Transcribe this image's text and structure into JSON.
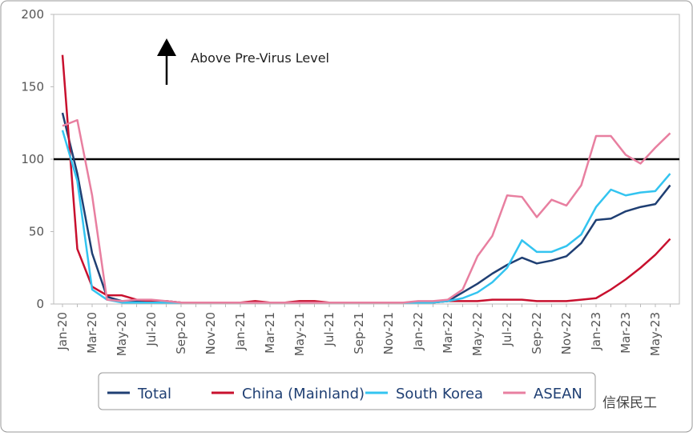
{
  "chart_data": {
    "type": "line",
    "annotation": "Above Pre-Virus Level",
    "reference_line": 100,
    "watermark": "信保民工",
    "categories": [
      "Jan-20",
      null,
      "Mar-20",
      null,
      "May-20",
      null,
      "Jul-20",
      null,
      "Sep-20",
      null,
      "Nov-20",
      null,
      "Jan-21",
      null,
      "Mar-21",
      null,
      "May-21",
      null,
      "Jul-21",
      null,
      "Sep-21",
      null,
      "Nov-21",
      null,
      "Jan-22",
      null,
      "Mar-22",
      null,
      "May-22",
      null,
      "Jul-22",
      null,
      "Sep-22",
      null,
      "Nov-22",
      null,
      "Jan-23",
      null,
      "Mar-23",
      null,
      "May-23",
      null
    ],
    "series": [
      {
        "name": "Total",
        "color": "#1f3f73",
        "values": [
          132,
          90,
          35,
          5,
          2,
          2,
          2,
          2,
          1,
          1,
          1,
          1,
          1,
          1,
          1,
          1,
          1,
          1,
          1,
          1,
          1,
          1,
          1,
          1,
          1,
          1,
          2,
          8,
          14,
          21,
          27,
          32,
          28,
          30,
          33,
          42,
          58,
          59,
          64,
          67,
          69,
          82
        ]
      },
      {
        "name": "China (Mainland)",
        "color": "#c8102e",
        "values": [
          172,
          38,
          12,
          6,
          6,
          3,
          2,
          2,
          1,
          1,
          1,
          1,
          1,
          2,
          1,
          1,
          2,
          2,
          1,
          1,
          1,
          1,
          1,
          1,
          1,
          1,
          2,
          2,
          2,
          3,
          3,
          3,
          2,
          2,
          2,
          3,
          4,
          10,
          17,
          25,
          34,
          45
        ]
      },
      {
        "name": "South Korea",
        "color": "#33c4f0",
        "values": [
          120,
          85,
          10,
          3,
          1,
          1,
          1,
          1,
          1,
          1,
          1,
          1,
          1,
          1,
          1,
          1,
          1,
          1,
          1,
          1,
          1,
          1,
          1,
          1,
          1,
          1,
          2,
          4,
          8,
          15,
          25,
          44,
          36,
          36,
          40,
          48,
          67,
          79,
          75,
          77,
          78,
          90
        ]
      },
      {
        "name": "ASEAN",
        "color": "#e87fa0",
        "values": [
          123,
          127,
          75,
          3,
          2,
          3,
          3,
          2,
          1,
          1,
          1,
          1,
          1,
          1,
          1,
          1,
          1,
          1,
          1,
          1,
          1,
          1,
          1,
          1,
          2,
          2,
          3,
          10,
          33,
          47,
          75,
          74,
          60,
          72,
          68,
          82,
          116,
          116,
          103,
          97,
          108,
          118
        ]
      }
    ],
    "ylim": [
      0,
      200
    ],
    "yticks": [
      0,
      50,
      100,
      150,
      200
    ],
    "grid": false
  }
}
